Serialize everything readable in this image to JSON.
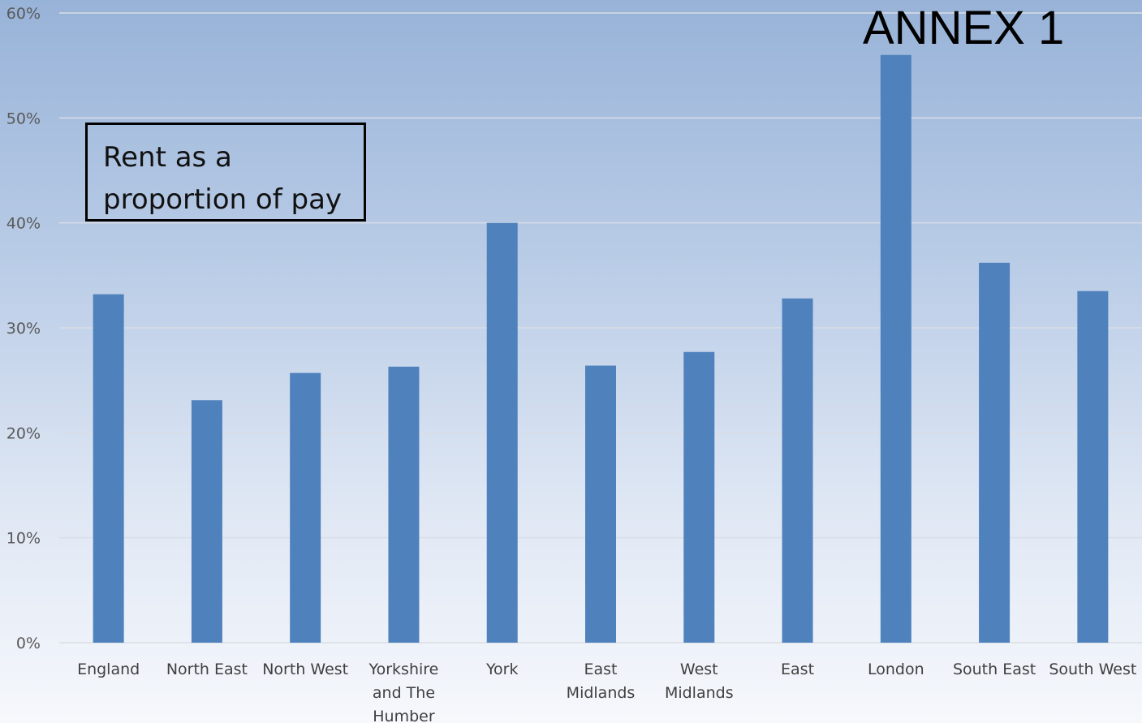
{
  "annotation": "ANNEX 1",
  "title_box": {
    "lines": [
      "Rent as a",
      "proportion of pay"
    ]
  },
  "colors": {
    "bar": "#4f81bd",
    "gridline": "#d9dee6",
    "background_top": "#98b3d8",
    "background_bottom": "#f6f8fc"
  },
  "chart_data": {
    "type": "bar",
    "title": "Rent as a proportion of pay",
    "xlabel": "",
    "ylabel": "",
    "y_tick_labels": [
      "0%",
      "10%",
      "20%",
      "30%",
      "40%",
      "50%",
      "60%"
    ],
    "y_ticks": [
      0,
      10,
      20,
      30,
      40,
      50,
      60
    ],
    "ylim": [
      0,
      60
    ],
    "grid": true,
    "categories": [
      [
        "England"
      ],
      [
        "North East"
      ],
      [
        "North West"
      ],
      [
        "Yorkshire",
        "and The",
        "Humber"
      ],
      [
        "York"
      ],
      [
        "East",
        "Midlands"
      ],
      [
        "West",
        "Midlands"
      ],
      [
        "East"
      ],
      [
        "London"
      ],
      [
        "South East"
      ],
      [
        "South West"
      ]
    ],
    "values": [
      33.2,
      23.1,
      25.7,
      26.3,
      40.0,
      26.4,
      27.7,
      32.8,
      56.0,
      36.2,
      33.5
    ]
  }
}
